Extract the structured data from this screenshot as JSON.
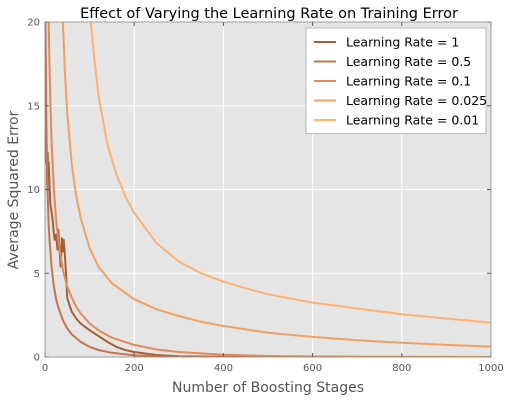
{
  "chart_data": {
    "type": "line",
    "title": "Effect of Varying the Learning Rate on Training Error",
    "xlabel": "Number of Boosting Stages",
    "ylabel": "Average Squared Error",
    "xlim": [
      0,
      1000
    ],
    "ylim": [
      0,
      20
    ],
    "xticks": [
      0,
      200,
      400,
      600,
      800,
      1000
    ],
    "yticks": [
      0,
      5,
      10,
      15,
      20
    ],
    "grid": true,
    "legend_position": "top-right",
    "colors": {
      "plot_background": "#e5e5e5",
      "grid": "#ffffff"
    },
    "series": [
      {
        "name": "Learning Rate = 1",
        "color": "#a65f34",
        "x": [
          1,
          2,
          3,
          4,
          5,
          6,
          7,
          8,
          10,
          12,
          15,
          18,
          20,
          22,
          25,
          28,
          30,
          32,
          35,
          38,
          40,
          42,
          45,
          48,
          50,
          55,
          60,
          65,
          70,
          80,
          90,
          100,
          120,
          140,
          160,
          180,
          200,
          250,
          300,
          400,
          500,
          700,
          1000
        ],
        "y": [
          17.8,
          14.2,
          11.6,
          12.0,
          10.3,
          12.2,
          11.0,
          11.6,
          10.3,
          9.1,
          8.6,
          8.0,
          7.3,
          7.0,
          7.3,
          6.4,
          7.6,
          6.6,
          5.4,
          7.1,
          6.3,
          7.0,
          5.9,
          4.6,
          3.5,
          3.1,
          2.7,
          2.5,
          2.3,
          2.0,
          1.8,
          1.6,
          1.25,
          0.9,
          0.6,
          0.42,
          0.3,
          0.12,
          0.05,
          0.01,
          0.0,
          0.0,
          0.0
        ]
      },
      {
        "name": "Learning Rate = 0.5",
        "color": "#c9734a",
        "x": [
          1,
          2,
          3,
          5,
          8,
          10,
          15,
          20,
          25,
          30,
          40,
          50,
          60,
          80,
          100,
          120,
          150,
          200,
          250,
          300,
          400,
          600,
          800,
          1000
        ],
        "y": [
          20,
          17.2,
          14.2,
          10.6,
          8.0,
          7.0,
          5.3,
          4.2,
          3.45,
          2.95,
          2.2,
          1.7,
          1.35,
          0.9,
          0.6,
          0.42,
          0.25,
          0.1,
          0.05,
          0.02,
          0.0,
          0.0,
          0.0,
          0.0
        ]
      },
      {
        "name": "Learning Rate = 0.1",
        "color": "#e08a5a",
        "x": [
          8,
          10,
          12,
          15,
          20,
          25,
          30,
          40,
          50,
          60,
          70,
          80,
          100,
          120,
          150,
          200,
          250,
          300,
          400,
          500,
          600,
          800,
          1000
        ],
        "y": [
          20,
          17.5,
          15.2,
          12.7,
          10.0,
          8.2,
          6.9,
          5.2,
          4.2,
          3.55,
          3.0,
          2.6,
          2.0,
          1.6,
          1.15,
          0.72,
          0.45,
          0.3,
          0.13,
          0.06,
          0.03,
          0.01,
          0.0
        ]
      },
      {
        "name": "Learning Rate = 0.025",
        "color": "#f0a060",
        "x": [
          40,
          45,
          50,
          60,
          70,
          80,
          100,
          120,
          150,
          200,
          250,
          300,
          350,
          400,
          500,
          600,
          700,
          800,
          900,
          1000
        ],
        "y": [
          20,
          16.8,
          14.5,
          11.5,
          9.6,
          8.3,
          6.5,
          5.4,
          4.4,
          3.45,
          2.85,
          2.45,
          2.1,
          1.85,
          1.45,
          1.2,
          1.0,
          0.85,
          0.72,
          0.62
        ]
      },
      {
        "name": "Learning Rate = 0.01",
        "color": "#ffb070",
        "x": [
          103,
          110,
          120,
          140,
          160,
          180,
          200,
          250,
          300,
          350,
          400,
          450,
          500,
          600,
          700,
          800,
          900,
          1000
        ],
        "y": [
          20,
          17.9,
          15.6,
          12.7,
          10.9,
          9.6,
          8.6,
          6.8,
          5.7,
          5.0,
          4.5,
          4.1,
          3.75,
          3.25,
          2.9,
          2.55,
          2.3,
          2.05
        ]
      }
    ]
  }
}
